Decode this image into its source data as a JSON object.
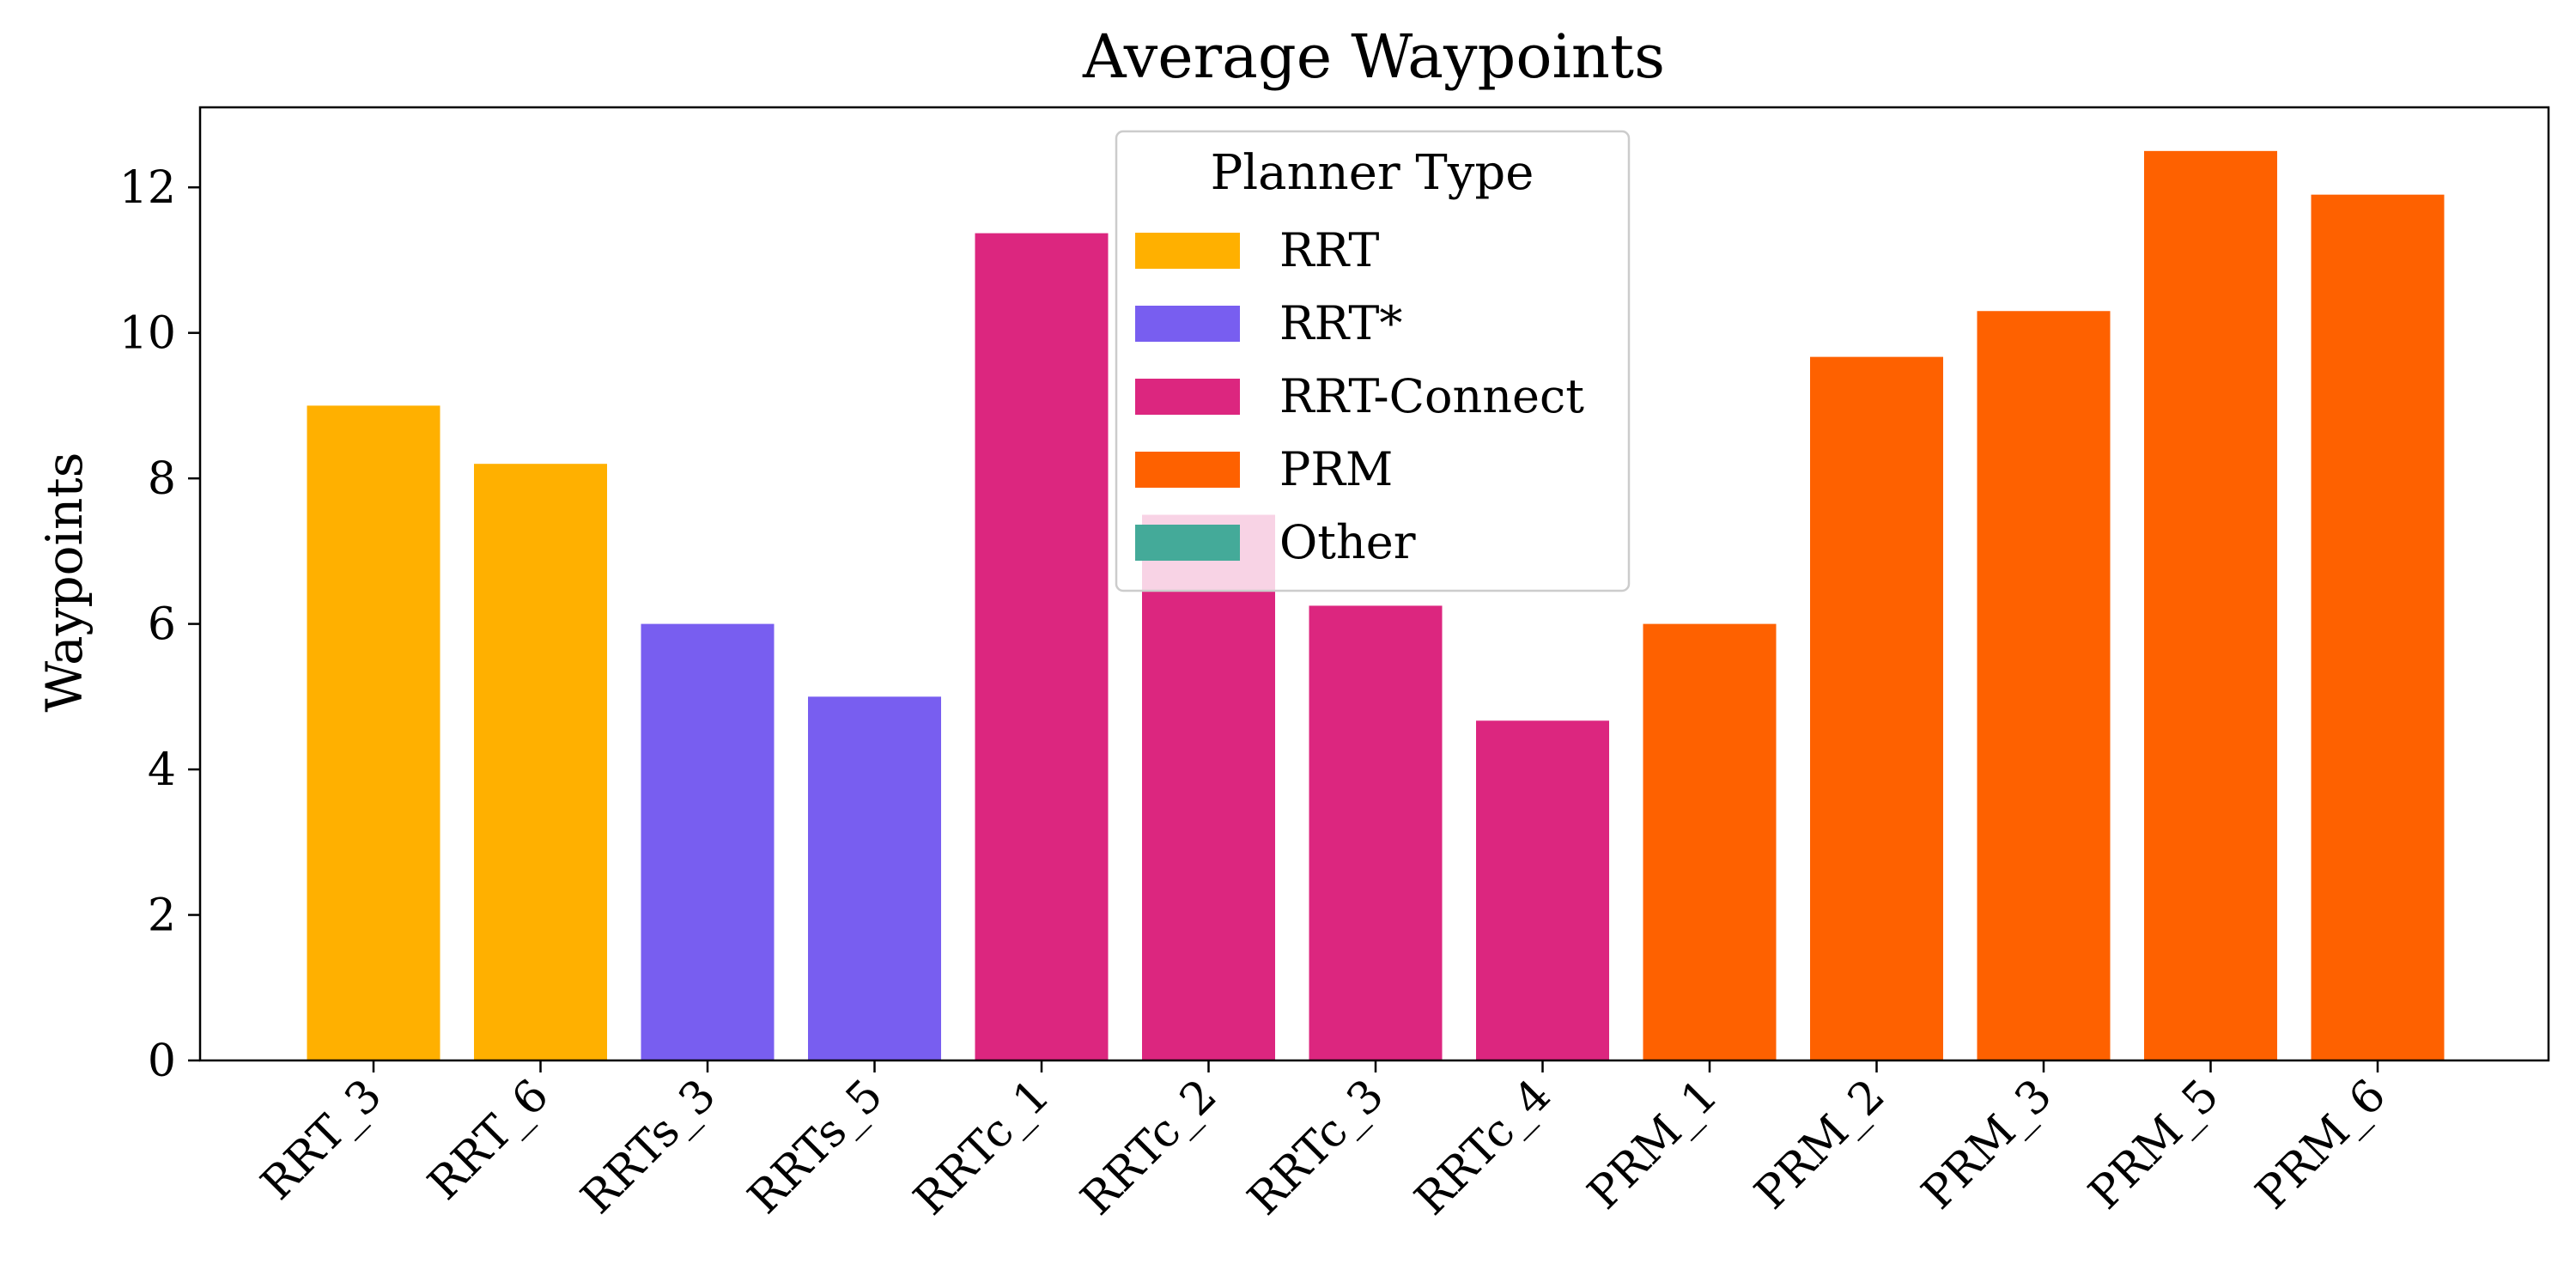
{
  "chart_data": {
    "type": "bar",
    "title": "Average Waypoints",
    "xlabel": "",
    "ylabel": "Waypoints",
    "ylim": [
      0,
      13.1
    ],
    "yticks": [
      0,
      2,
      4,
      6,
      8,
      10,
      12
    ],
    "grid": false,
    "categories": [
      "RRT_3",
      "RRT_6",
      "RRTs_3",
      "RRTs_5",
      "RRTc_1",
      "RRTc_2",
      "RRTc_3",
      "RRTc_4",
      "PRM_1",
      "PRM_2",
      "PRM_3",
      "PRM_5",
      "PRM_6"
    ],
    "values": [
      9.0,
      8.2,
      6.0,
      5.0,
      11.37,
      7.5,
      6.25,
      4.67,
      6.0,
      9.67,
      10.3,
      12.5,
      11.9
    ],
    "groups": [
      "RRT",
      "RRT",
      "RRT*",
      "RRT*",
      "RRT-Connect",
      "RRT-Connect",
      "RRT-Connect",
      "RRT-Connect",
      "PRM",
      "PRM",
      "PRM",
      "PRM",
      "PRM"
    ],
    "legend": {
      "title": "Planner Type",
      "placement": "top-center",
      "entries": [
        {
          "name": "RRT",
          "color": "#FFB000"
        },
        {
          "name": "RRT*",
          "color": "#785EF0"
        },
        {
          "name": "RRT-Connect",
          "color": "#DC267F"
        },
        {
          "name": "PRM",
          "color": "#FE6100"
        },
        {
          "name": "Other",
          "color": "#44AA99"
        }
      ]
    }
  }
}
